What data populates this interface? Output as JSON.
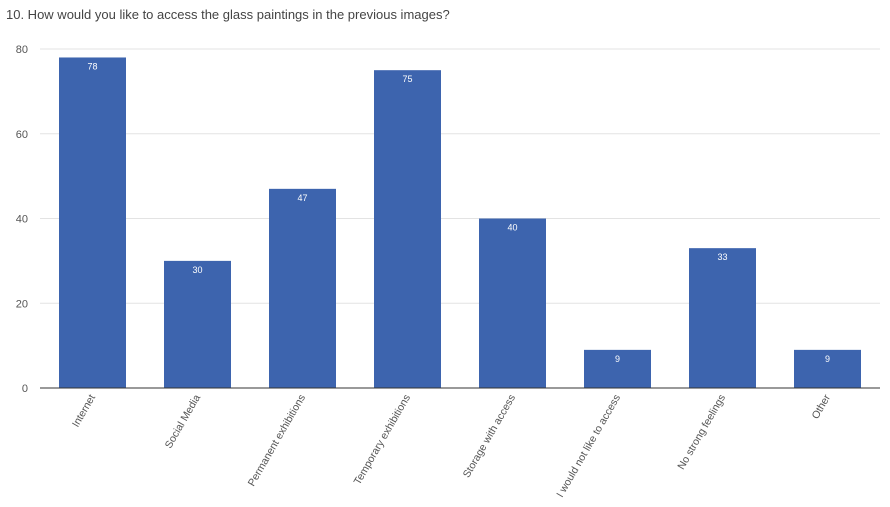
{
  "chart_data": {
    "type": "bar",
    "title": "10. How would you like to access the glass paintings in the previous images?",
    "categories": [
      "Internet",
      "Social Media",
      "Permanent exhibitions",
      "Temporary exhibitions",
      "Storage with access",
      "I would not like to access",
      "No strong feelings",
      "Other"
    ],
    "values": [
      78,
      30,
      47,
      75,
      40,
      9,
      33,
      9
    ],
    "yticks": [
      0,
      20,
      40,
      60,
      80
    ],
    "ylim": [
      0,
      80
    ],
    "grid": true,
    "bar_color": "#3d64ae",
    "data_labels": true
  }
}
